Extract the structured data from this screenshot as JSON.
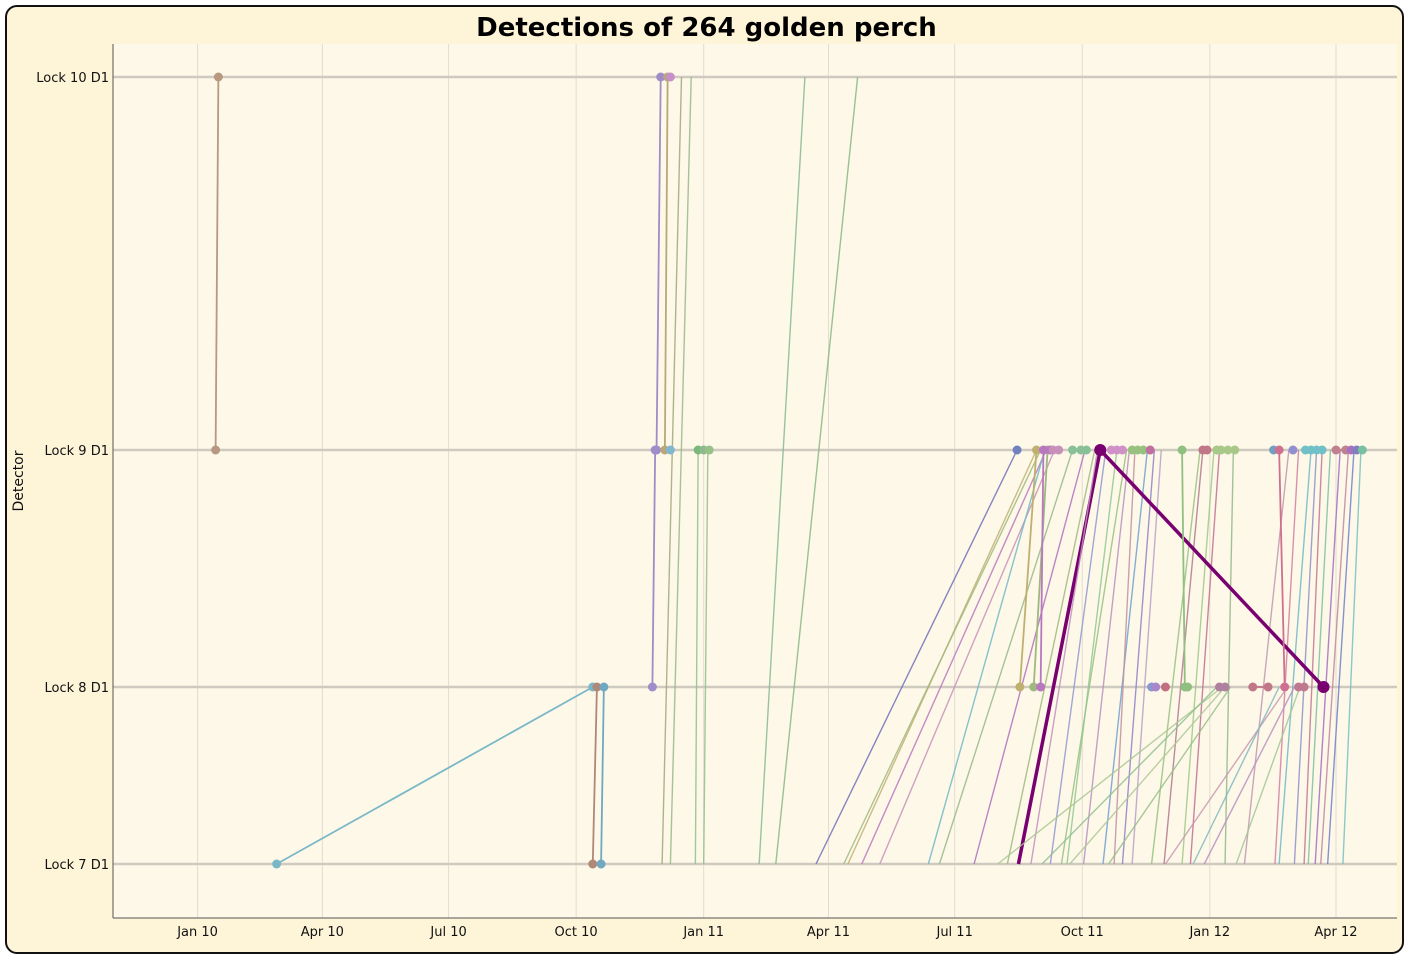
{
  "chart_data": {
    "type": "line",
    "title": "Detections of 264 golden perch",
    "ylabel": "Detector",
    "xlabel": "",
    "x_ticks": [
      "Jan 10",
      "Apr 10",
      "Jul 10",
      "Oct 10",
      "Jan 11",
      "Apr 11",
      "Jul 11",
      "Oct 11",
      "Jan 12",
      "Apr 12"
    ],
    "y_categories": [
      "Lock 7 D1",
      "Lock 8 D1",
      "Lock 9 D1",
      "Lock 10 D1"
    ],
    "y_category_labels": [
      "Lock 7",
      "Lock 8",
      "Lock 9",
      "Lock 10"
    ],
    "xlim": [
      "2009-11-01",
      "2012-05-15"
    ],
    "grid": true,
    "colors": {
      "background": "#fef4d8",
      "plot": "#fdf8e8",
      "grid": "#d8d8d8",
      "highlight": "#780070"
    },
    "series": [
      {
        "color": "#b89880",
        "points": [
          [
            "2010-01-14",
            3
          ],
          [
            "2010-01-16",
            4
          ]
        ]
      },
      {
        "color": "#7ab8c8",
        "points": [
          [
            "2010-02-27",
            1
          ],
          [
            "2010-10-13",
            2
          ]
        ]
      },
      {
        "color": "#b08878",
        "points": [
          [
            "2010-10-13",
            1
          ],
          [
            "2010-10-16",
            2
          ]
        ]
      },
      {
        "color": "#70a8c0",
        "points": [
          [
            "2010-10-19",
            1
          ],
          [
            "2010-10-21",
            2
          ]
        ]
      },
      {
        "color": "#a08cc8",
        "points": [
          [
            "2010-11-25",
            2
          ],
          [
            "2010-11-27",
            3
          ],
          [
            "2010-11-28",
            3
          ],
          [
            "2010-12-01",
            4
          ]
        ]
      },
      {
        "color": "#b8a878",
        "points": [
          [
            "2010-12-04",
            3
          ],
          [
            "2010-12-06",
            4
          ]
        ]
      },
      {
        "color": "#c890c8",
        "points": [
          [
            "2010-12-08",
            4
          ]
        ]
      },
      {
        "color": "#80b8d0",
        "points": [
          [
            "2010-12-08",
            3
          ]
        ]
      },
      {
        "color": "#78b878",
        "points": [
          [
            "2010-12-28",
            3
          ]
        ]
      },
      {
        "color": "#90b890",
        "points": [
          [
            "2011-01-01",
            3
          ]
        ]
      },
      {
        "color": "#98c088",
        "points": [
          [
            "2011-01-05",
            3
          ]
        ]
      },
      {
        "color": "#7080c0",
        "points": [
          [
            "2011-08-15",
            3
          ]
        ]
      },
      {
        "color": "#c0b070",
        "points": [
          [
            "2011-08-17",
            2
          ],
          [
            "2011-08-29",
            3
          ]
        ]
      },
      {
        "color": "#a0b880",
        "points": [
          [
            "2011-08-27",
            2
          ],
          [
            "2011-09-06",
            3
          ]
        ]
      },
      {
        "color": "#b878c0",
        "points": [
          [
            "2011-09-01",
            2
          ],
          [
            "2011-09-03",
            3
          ],
          [
            "2011-09-08",
            3
          ]
        ]
      },
      {
        "color": "#c890b8",
        "points": [
          [
            "2011-09-10",
            3
          ],
          [
            "2011-09-14",
            3
          ]
        ]
      },
      {
        "color": "#88c098",
        "points": [
          [
            "2011-09-24",
            3
          ],
          [
            "2011-09-30",
            3
          ],
          [
            "2011-10-04",
            3
          ]
        ]
      },
      {
        "color": "#780070",
        "points": [
          [
            "2011-10-14",
            3
          ],
          [
            "2012-03-23",
            2
          ]
        ]
      },
      {
        "color": "#d090c8",
        "points": [
          [
            "2011-10-22",
            3
          ],
          [
            "2011-10-26",
            3
          ],
          [
            "2011-10-30",
            3
          ]
        ]
      },
      {
        "color": "#98c080",
        "points": [
          [
            "2011-11-06",
            3
          ],
          [
            "2011-11-10",
            3
          ],
          [
            "2011-11-14",
            3
          ]
        ]
      },
      {
        "color": "#c070a0",
        "points": [
          [
            "2011-11-19",
            3
          ]
        ]
      },
      {
        "color": "#8898d0",
        "points": [
          [
            "2011-11-20",
            2
          ]
        ]
      },
      {
        "color": "#a888c8",
        "points": [
          [
            "2011-11-23",
            2
          ]
        ]
      },
      {
        "color": "#c07080",
        "points": [
          [
            "2011-11-30",
            2
          ]
        ]
      },
      {
        "color": "#90c080",
        "points": [
          [
            "2011-12-12",
            3
          ],
          [
            "2011-12-14",
            2
          ],
          [
            "2011-12-16",
            2
          ]
        ]
      },
      {
        "color": "#c07888",
        "points": [
          [
            "2011-12-27",
            3
          ],
          [
            "2011-12-30",
            3
          ]
        ]
      },
      {
        "color": "#a8c888",
        "points": [
          [
            "2012-01-06",
            3
          ],
          [
            "2012-01-09",
            3
          ],
          [
            "2012-01-14",
            3
          ],
          [
            "2012-01-19",
            3
          ]
        ]
      },
      {
        "color": "#b080a0",
        "points": [
          [
            "2012-01-08",
            2
          ],
          [
            "2012-01-12",
            2
          ]
        ]
      },
      {
        "color": "#c07888",
        "points": [
          [
            "2012-02-01",
            2
          ],
          [
            "2012-02-12",
            2
          ]
        ]
      },
      {
        "color": "#70a0c0",
        "points": [
          [
            "2012-02-16",
            3
          ]
        ]
      },
      {
        "color": "#d07090",
        "points": [
          [
            "2012-02-20",
            3
          ],
          [
            "2012-02-24",
            2
          ]
        ]
      },
      {
        "color": "#9090d0",
        "points": [
          [
            "2012-03-01",
            3
          ]
        ]
      },
      {
        "color": "#c07890",
        "points": [
          [
            "2012-03-05",
            2
          ],
          [
            "2012-03-09",
            2
          ]
        ]
      },
      {
        "color": "#70c0c8",
        "points": [
          [
            "2012-03-10",
            3
          ],
          [
            "2012-03-14",
            3
          ],
          [
            "2012-03-18",
            3
          ],
          [
            "2012-03-22",
            3
          ]
        ]
      },
      {
        "color": "#c08090",
        "points": [
          [
            "2012-04-01",
            3
          ],
          [
            "2012-04-08",
            3
          ]
        ]
      },
      {
        "color": "#a870c0",
        "points": [
          [
            "2012-04-12",
            3
          ]
        ]
      },
      {
        "color": "#8080c0",
        "points": [
          [
            "2012-04-16",
            3
          ]
        ]
      },
      {
        "color": "#78c0a0",
        "points": [
          [
            "2012-04-20",
            3
          ]
        ]
      }
    ],
    "crossing_lines": [
      {
        "color": "#98b888",
        "from": [
          "2010-12-08",
          1
        ],
        "to": [
          "2010-12-23",
          4
        ]
      },
      {
        "color": "#a0a878",
        "from": [
          "2010-12-02",
          1
        ],
        "to": [
          "2010-12-16",
          4
        ]
      },
      {
        "color": "#88b890",
        "from": [
          "2011-02-10",
          1
        ],
        "to": [
          "2011-03-15",
          4
        ]
      },
      {
        "color": "#88b880",
        "from": [
          "2011-02-22",
          1
        ],
        "to": [
          "2011-04-22",
          4
        ]
      },
      {
        "color": "#90c088",
        "from": [
          "2010-12-26",
          1
        ],
        "to": [
          "2010-12-28",
          3
        ]
      },
      {
        "color": "#90c088",
        "from": [
          "2011-01-01",
          1
        ],
        "to": [
          "2011-01-04",
          3
        ]
      },
      {
        "color": "#7070b8",
        "from": [
          "2011-03-23",
          1
        ],
        "to": [
          "2011-08-15",
          3
        ]
      },
      {
        "color": "#c0b070",
        "from": [
          "2011-04-15",
          1
        ],
        "to": [
          "2011-08-29",
          3
        ]
      },
      {
        "color": "#a0b880",
        "from": [
          "2011-04-12",
          1
        ],
        "to": [
          "2011-09-01",
          3
        ]
      },
      {
        "color": "#b878c0",
        "from": [
          "2011-04-25",
          1
        ],
        "to": [
          "2011-09-05",
          3
        ]
      },
      {
        "color": "#c890b8",
        "from": [
          "2011-05-08",
          1
        ],
        "to": [
          "2011-09-11",
          3
        ]
      },
      {
        "color": "#70b8c8",
        "from": [
          "2011-06-12",
          1
        ],
        "to": [
          "2011-09-04",
          3
        ]
      },
      {
        "color": "#98b888",
        "from": [
          "2011-06-20",
          1
        ],
        "to": [
          "2011-09-24",
          3
        ]
      },
      {
        "color": "#b070c0",
        "from": [
          "2011-07-15",
          1
        ],
        "to": [
          "2011-10-03",
          3
        ]
      },
      {
        "color": "#780070",
        "from": [
          "2011-08-16",
          1
        ],
        "to": [
          "2011-10-14",
          3
        ]
      },
      {
        "color": "#a0b880",
        "from": [
          "2011-08-08",
          1
        ],
        "to": [
          "2011-10-10",
          3
        ]
      },
      {
        "color": "#c090c0",
        "from": [
          "2011-08-25",
          1
        ],
        "to": [
          "2011-10-12",
          3
        ]
      },
      {
        "color": "#9098d0",
        "from": [
          "2011-09-08",
          1
        ],
        "to": [
          "2011-10-18",
          3
        ]
      },
      {
        "color": "#98c080",
        "from": [
          "2011-09-16",
          1
        ],
        "to": [
          "2011-11-02",
          3
        ]
      },
      {
        "color": "#90c890",
        "from": [
          "2011-09-20",
          1
        ],
        "to": [
          "2011-10-26",
          3
        ]
      },
      {
        "color": "#b890c0",
        "from": [
          "2011-10-02",
          1
        ],
        "to": [
          "2011-11-04",
          3
        ]
      },
      {
        "color": "#70a0d0",
        "from": [
          "2011-10-16",
          1
        ],
        "to": [
          "2011-11-17",
          3
        ]
      },
      {
        "color": "#c090a0",
        "from": [
          "2011-10-24",
          1
        ],
        "to": [
          "2011-11-08",
          3
        ]
      },
      {
        "color": "#9080c8",
        "from": [
          "2011-10-30",
          1
        ],
        "to": [
          "2011-11-22",
          3
        ]
      },
      {
        "color": "#b8a0c8",
        "from": [
          "2011-11-06",
          1
        ],
        "to": [
          "2011-11-27",
          3
        ]
      },
      {
        "color": "#98c080",
        "from": [
          "2011-11-20",
          1
        ],
        "to": [
          "2011-12-25",
          3
        ]
      },
      {
        "color": "#b07890",
        "from": [
          "2011-11-29",
          1
        ],
        "to": [
          "2011-12-27",
          3
        ]
      },
      {
        "color": "#a0c888",
        "from": [
          "2011-12-12",
          1
        ],
        "to": [
          "2012-01-04",
          3
        ]
      },
      {
        "color": "#c07090",
        "from": [
          "2011-12-18",
          1
        ],
        "to": [
          "2012-01-08",
          3
        ]
      },
      {
        "color": "#90b888",
        "from": [
          "2012-01-12",
          1
        ],
        "to": [
          "2012-01-18",
          3
        ]
      },
      {
        "color": "#c098b0",
        "from": [
          "2012-01-26",
          1
        ],
        "to": [
          "2012-02-27",
          3
        ]
      },
      {
        "color": "#d080a0",
        "from": [
          "2012-02-17",
          1
        ],
        "to": [
          "2012-03-05",
          3
        ]
      },
      {
        "color": "#70b8c8",
        "from": [
          "2012-02-20",
          1
        ],
        "to": [
          "2012-03-14",
          3
        ]
      },
      {
        "color": "#9090c8",
        "from": [
          "2012-03-02",
          1
        ],
        "to": [
          "2012-03-18",
          3
        ]
      },
      {
        "color": "#c07890",
        "from": [
          "2012-03-09",
          1
        ],
        "to": [
          "2012-03-22",
          3
        ]
      },
      {
        "color": "#80c0a0",
        "from": [
          "2012-03-12",
          1
        ],
        "to": [
          "2012-03-28",
          3
        ]
      },
      {
        "color": "#a070c0",
        "from": [
          "2012-03-17",
          1
        ],
        "to": [
          "2012-04-04",
          3
        ]
      },
      {
        "color": "#c088a0",
        "from": [
          "2012-03-21",
          1
        ],
        "to": [
          "2012-04-10",
          3
        ]
      },
      {
        "color": "#7080c8",
        "from": [
          "2012-03-26",
          1
        ],
        "to": [
          "2012-04-14",
          3
        ]
      },
      {
        "color": "#78c0c0",
        "from": [
          "2012-04-06",
          1
        ],
        "to": [
          "2012-04-19",
          3
        ]
      },
      {
        "color": "#a8c890",
        "from": [
          "2011-08-01",
          1
        ],
        "to": [
          "2012-01-10",
          2
        ]
      },
      {
        "color": "#90c090",
        "from": [
          "2011-09-02",
          1
        ],
        "to": [
          "2012-01-06",
          2
        ]
      },
      {
        "color": "#b0c898",
        "from": [
          "2011-09-22",
          1
        ],
        "to": [
          "2012-01-12",
          2
        ]
      },
      {
        "color": "#98c088",
        "from": [
          "2011-10-20",
          1
        ],
        "to": [
          "2012-01-16",
          2
        ]
      },
      {
        "color": "#c898b0",
        "from": [
          "2011-11-30",
          1
        ],
        "to": [
          "2012-02-26",
          2
        ]
      },
      {
        "color": "#80b8c0",
        "from": [
          "2011-12-20",
          1
        ],
        "to": [
          "2012-02-20",
          2
        ]
      },
      {
        "color": "#b890c0",
        "from": [
          "2011-12-28",
          1
        ],
        "to": [
          "2012-03-02",
          2
        ]
      },
      {
        "color": "#a0c898",
        "from": [
          "2012-01-20",
          1
        ],
        "to": [
          "2012-03-06",
          2
        ]
      }
    ]
  }
}
